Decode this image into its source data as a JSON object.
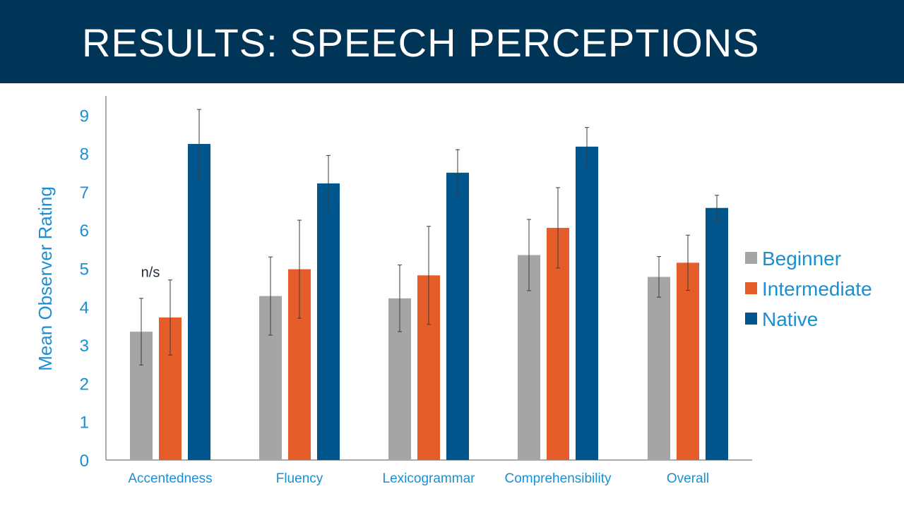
{
  "slide": {
    "title": "RESULTS: SPEECH PERCEPTIONS",
    "title_bar_color": "#003558"
  },
  "chart_data": {
    "type": "bar",
    "title": "",
    "xlabel": "",
    "ylabel": "Mean Observer Rating",
    "ylim": [
      0,
      9
    ],
    "yticks": [
      0,
      1,
      2,
      3,
      4,
      5,
      6,
      7,
      8,
      9
    ],
    "grid": false,
    "legend_position": "right",
    "categories": [
      "Accentedness",
      "Fluency",
      "Lexicogrammar",
      "Comprehensibility",
      "Overall"
    ],
    "series": [
      {
        "name": "Beginner",
        "color": "#a5a5a5",
        "values": [
          3.35,
          4.28,
          4.22,
          5.35,
          4.78
        ],
        "error": [
          0.87,
          1.02,
          0.87,
          0.93,
          0.53
        ]
      },
      {
        "name": "Intermediate",
        "color": "#e55e2a",
        "values": [
          3.72,
          4.98,
          4.82,
          6.06,
          5.15
        ],
        "error": [
          0.98,
          1.28,
          1.28,
          1.05,
          0.72
        ]
      },
      {
        "name": "Native",
        "color": "#02568e",
        "values": [
          8.25,
          7.22,
          7.5,
          8.18,
          6.58
        ],
        "error": [
          0.9,
          0.73,
          0.6,
          0.5,
          0.33
        ]
      }
    ],
    "annotations": [
      {
        "text": "n/s",
        "category": "Accentedness",
        "y": 5.0
      }
    ]
  }
}
